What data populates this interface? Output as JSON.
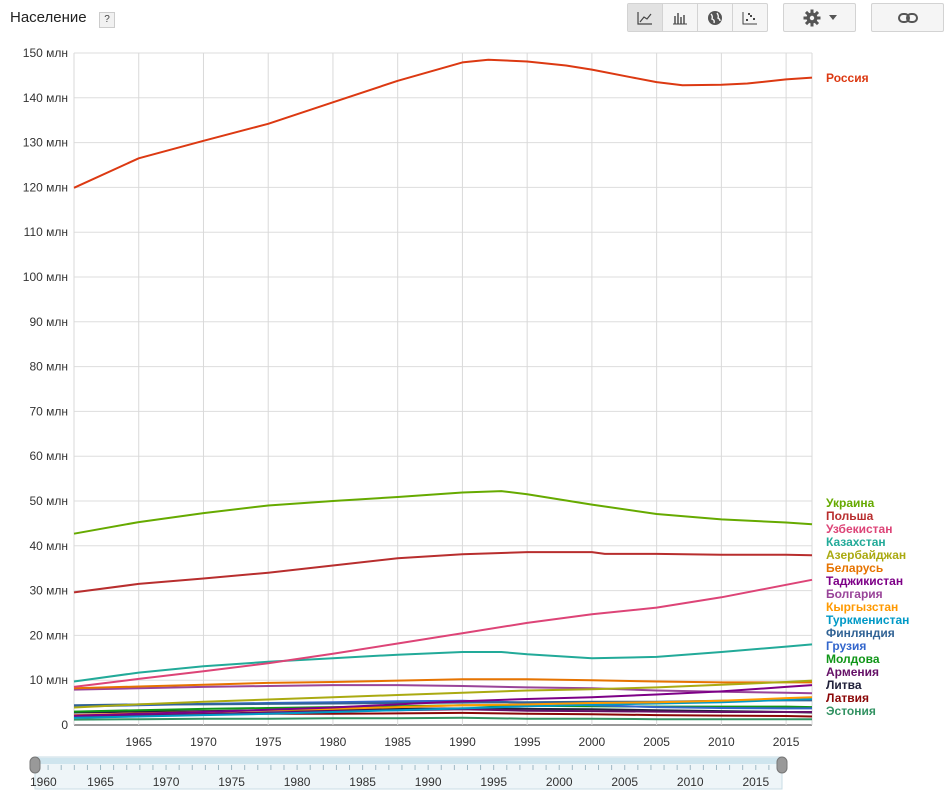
{
  "header": {
    "title": "Население",
    "help_label": "?",
    "chart_type_buttons": [
      {
        "icon": "line-chart-icon",
        "active": true
      },
      {
        "icon": "bar-chart-icon",
        "active": false
      },
      {
        "icon": "globe-map-icon",
        "active": false
      },
      {
        "icon": "scatter-chart-icon",
        "active": false
      }
    ],
    "settings_icon": "gear-icon",
    "dropdown_icon": "triangle-down-icon",
    "link_icon": "link-icon"
  },
  "chart_data": {
    "type": "line",
    "title": "Население",
    "xlabel": "",
    "ylabel": "",
    "xlim": [
      1960,
      2017
    ],
    "ylim": [
      0,
      150000000
    ],
    "y_ticks": [
      "0",
      "10 млн",
      "20 млн",
      "30 млн",
      "40 млн",
      "50 млн",
      "60 млн",
      "70 млн",
      "80 млн",
      "90 млн",
      "100 млн",
      "110 млн",
      "120 млн",
      "130 млн",
      "140 млн",
      "150 млн"
    ],
    "x_ticks": [
      "1965",
      "1970",
      "1975",
      "1980",
      "1985",
      "1990",
      "1995",
      "2000",
      "2005",
      "2010",
      "2015"
    ],
    "grid": true,
    "legend_position": "right",
    "series": [
      {
        "name": "Россия",
        "color": "#dc3912",
        "x": [
          1960,
          1965,
          1970,
          1975,
          1980,
          1985,
          1990,
          1992,
          1995,
          1998,
          2000,
          2003,
          2005,
          2007,
          2010,
          2012,
          2015,
          2017
        ],
        "y": [
          119.9,
          126.5,
          130.4,
          134.2,
          139.0,
          143.8,
          147.9,
          148.5,
          148.1,
          147.2,
          146.3,
          144.6,
          143.5,
          142.8,
          142.9,
          143.2,
          144.1,
          144.5
        ]
      },
      {
        "name": "Украина",
        "color": "#66aa00",
        "x": [
          1960,
          1965,
          1970,
          1975,
          1980,
          1985,
          1990,
          1993,
          1995,
          2000,
          2005,
          2010,
          2015,
          2017
        ],
        "y": [
          42.7,
          45.3,
          47.3,
          49.0,
          50.0,
          50.9,
          51.9,
          52.2,
          51.5,
          49.2,
          47.1,
          45.9,
          45.2,
          44.8
        ]
      },
      {
        "name": "Польша",
        "color": "#b82e2e",
        "x": [
          1960,
          1965,
          1970,
          1975,
          1980,
          1985,
          1990,
          1995,
          2000,
          2001,
          2005,
          2010,
          2015,
          2017
        ],
        "y": [
          29.6,
          31.5,
          32.7,
          34.0,
          35.6,
          37.2,
          38.1,
          38.6,
          38.6,
          38.2,
          38.2,
          38.0,
          38.0,
          37.9
        ]
      },
      {
        "name": "Узбекистан",
        "color": "#dd4477",
        "x": [
          1960,
          1965,
          1970,
          1975,
          1980,
          1985,
          1990,
          1995,
          2000,
          2005,
          2010,
          2015,
          2017
        ],
        "y": [
          8.5,
          10.3,
          12.0,
          13.8,
          15.9,
          18.2,
          20.5,
          22.8,
          24.7,
          26.2,
          28.5,
          31.3,
          32.4
        ]
      },
      {
        "name": "Казахстан",
        "color": "#22aa99",
        "x": [
          1960,
          1965,
          1970,
          1975,
          1980,
          1985,
          1990,
          1993,
          1995,
          2000,
          2005,
          2010,
          2015,
          2017
        ],
        "y": [
          9.7,
          11.7,
          13.1,
          14.1,
          14.9,
          15.7,
          16.3,
          16.3,
          15.8,
          14.9,
          15.2,
          16.3,
          17.5,
          18.0
        ]
      },
      {
        "name": "Азербайджан",
        "color": "#aaaa11",
        "x": [
          1960,
          1965,
          1970,
          1975,
          1980,
          1985,
          1990,
          1995,
          2000,
          2005,
          2010,
          2015,
          2017
        ],
        "y": [
          3.9,
          4.6,
          5.2,
          5.7,
          6.2,
          6.7,
          7.2,
          7.7,
          8.0,
          8.4,
          9.0,
          9.6,
          9.9
        ]
      },
      {
        "name": "Беларусь",
        "color": "#e67300",
        "x": [
          1960,
          1965,
          1970,
          1975,
          1980,
          1985,
          1990,
          1995,
          2000,
          2005,
          2010,
          2015,
          2017
        ],
        "y": [
          8.2,
          8.6,
          9.0,
          9.4,
          9.6,
          9.9,
          10.2,
          10.2,
          10.0,
          9.7,
          9.5,
          9.5,
          9.5
        ]
      },
      {
        "name": "Таджикистан",
        "color": "#7d0087",
        "x": [
          1960,
          1965,
          1970,
          1975,
          1980,
          1985,
          1990,
          1995,
          2000,
          2005,
          2010,
          2015,
          2017
        ],
        "y": [
          2.1,
          2.5,
          2.9,
          3.4,
          3.9,
          4.6,
          5.3,
          5.8,
          6.2,
          6.8,
          7.5,
          8.5,
          8.9
        ]
      },
      {
        "name": "Болгария",
        "color": "#994499",
        "x": [
          1960,
          1965,
          1970,
          1975,
          1980,
          1985,
          1990,
          1995,
          2000,
          2005,
          2010,
          2015,
          2017
        ],
        "y": [
          7.9,
          8.2,
          8.5,
          8.7,
          8.9,
          8.9,
          8.7,
          8.4,
          8.2,
          7.7,
          7.4,
          7.2,
          7.1
        ]
      },
      {
        "name": "Кыргызстан",
        "color": "#ff9900",
        "x": [
          1960,
          1965,
          1970,
          1975,
          1980,
          1985,
          1990,
          1995,
          2000,
          2005,
          2010,
          2015,
          2017
        ],
        "y": [
          2.2,
          2.6,
          2.9,
          3.3,
          3.6,
          4.0,
          4.4,
          4.6,
          4.9,
          5.1,
          5.4,
          6.0,
          6.2
        ]
      },
      {
        "name": "Туркменистан",
        "color": "#0099c6",
        "x": [
          1960,
          1965,
          1970,
          1975,
          1980,
          1985,
          1990,
          1995,
          2000,
          2005,
          2010,
          2015,
          2017
        ],
        "y": [
          1.6,
          1.9,
          2.2,
          2.5,
          2.9,
          3.3,
          3.7,
          4.2,
          4.5,
          4.8,
          5.1,
          5.6,
          5.8
        ]
      },
      {
        "name": "Финляндия",
        "color": "#316395",
        "x": [
          1960,
          1965,
          1970,
          1975,
          1980,
          1985,
          1990,
          1995,
          2000,
          2005,
          2010,
          2015,
          2017
        ],
        "y": [
          4.4,
          4.6,
          4.6,
          4.7,
          4.8,
          4.9,
          5.0,
          5.1,
          5.2,
          5.2,
          5.4,
          5.5,
          5.5
        ]
      },
      {
        "name": "Грузия",
        "color": "#3366cc",
        "x": [
          1960,
          1965,
          1970,
          1975,
          1980,
          1985,
          1990,
          1995,
          2000,
          2005,
          2010,
          2015,
          2017
        ],
        "y": [
          4.1,
          4.4,
          4.7,
          4.9,
          5.1,
          5.3,
          5.4,
          5.0,
          4.4,
          4.0,
          3.8,
          3.7,
          3.7
        ]
      },
      {
        "name": "Молдова",
        "color": "#109618",
        "x": [
          1960,
          1965,
          1970,
          1975,
          1980,
          1985,
          1990,
          1995,
          2000,
          2005,
          2010,
          2015,
          2017
        ],
        "y": [
          3.0,
          3.3,
          3.6,
          3.8,
          4.0,
          4.2,
          4.4,
          4.3,
          4.2,
          4.1,
          4.1,
          4.1,
          4.0
        ]
      },
      {
        "name": "Армения",
        "color": "#651067",
        "x": [
          1960,
          1965,
          1970,
          1975,
          1980,
          1985,
          1990,
          1995,
          2000,
          2005,
          2010,
          2015,
          2017
        ],
        "y": [
          1.9,
          2.2,
          2.5,
          2.8,
          3.1,
          3.3,
          3.5,
          3.2,
          3.1,
          3.0,
          2.9,
          2.9,
          2.9
        ]
      },
      {
        "name": "Литва",
        "color": "#22223b",
        "x": [
          1960,
          1965,
          1970,
          1975,
          1980,
          1985,
          1990,
          1995,
          2000,
          2005,
          2010,
          2015,
          2017
        ],
        "y": [
          2.8,
          3.0,
          3.1,
          3.3,
          3.4,
          3.6,
          3.7,
          3.6,
          3.5,
          3.3,
          3.1,
          2.9,
          2.8
        ]
      },
      {
        "name": "Латвия",
        "color": "#8b0707",
        "x": [
          1960,
          1965,
          1970,
          1975,
          1980,
          1985,
          1990,
          1995,
          2000,
          2005,
          2010,
          2015,
          2017
        ],
        "y": [
          2.1,
          2.3,
          2.4,
          2.5,
          2.5,
          2.6,
          2.7,
          2.5,
          2.4,
          2.2,
          2.1,
          2.0,
          1.9
        ]
      },
      {
        "name": "Эстония",
        "color": "#329262",
        "x": [
          1960,
          1965,
          1970,
          1975,
          1980,
          1985,
          1990,
          1995,
          2000,
          2005,
          2010,
          2015,
          2017
        ],
        "y": [
          1.2,
          1.3,
          1.4,
          1.4,
          1.5,
          1.5,
          1.6,
          1.4,
          1.4,
          1.3,
          1.3,
          1.3,
          1.3
        ]
      }
    ]
  },
  "timeline": {
    "start_label": "1960",
    "labels": [
      "1965",
      "1970",
      "1975",
      "1980",
      "1985",
      "1990",
      "1995",
      "2000",
      "2005",
      "2010",
      "2015"
    ]
  }
}
